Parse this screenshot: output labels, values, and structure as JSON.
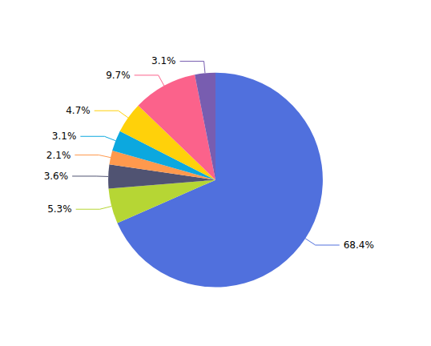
{
  "chart_data": {
    "type": "pie",
    "values": [
      68.4,
      5.3,
      3.6,
      2.1,
      3.1,
      4.7,
      9.7,
      3.1
    ],
    "value_labels": [
      "68.4%",
      "5.3%",
      "3.6%",
      "2.1%",
      "3.1%",
      "4.7%",
      "9.7%",
      "3.1%"
    ],
    "data_labels": true,
    "legend": false
  }
}
